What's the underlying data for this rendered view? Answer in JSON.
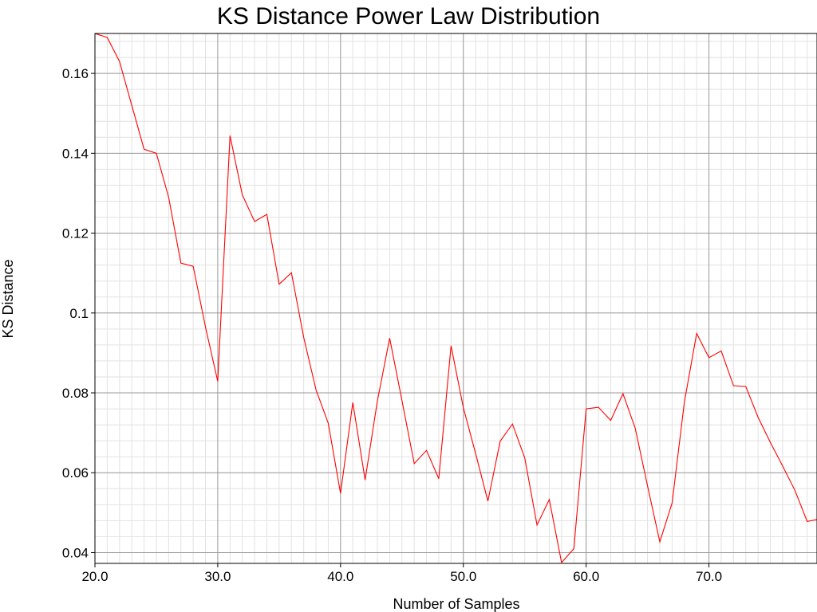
{
  "chart_data": {
    "type": "line",
    "title": "KS Distance Power Law Distribution",
    "xlabel": "Number of Samples",
    "ylabel": "KS Distance",
    "xlim": [
      20,
      78.8
    ],
    "ylim": [
      0.0373,
      0.17
    ],
    "grid": true,
    "x_ticks": [
      20,
      30,
      40,
      50,
      60,
      70
    ],
    "x_tick_labels": [
      "20.0",
      "30.0",
      "40.0",
      "50.0",
      "60.0",
      "70.0"
    ],
    "y_ticks": [
      0.04,
      0.06,
      0.08,
      0.1,
      0.12,
      0.14,
      0.16
    ],
    "y_tick_labels": [
      "0.04",
      "0.06",
      "0.08",
      "0.1",
      "0.12",
      "0.14",
      "0.16"
    ],
    "series": [
      {
        "color": "#ff0000",
        "x": [
          20,
          21,
          22,
          23,
          24,
          25,
          26,
          27,
          28,
          29,
          30,
          31,
          32,
          33,
          34,
          35,
          36,
          37,
          38,
          39,
          40,
          41,
          42,
          43,
          44,
          45,
          46,
          47,
          48,
          49,
          50,
          51,
          52,
          53,
          54,
          55,
          56,
          57,
          58,
          59,
          60,
          61,
          62,
          63,
          64,
          65,
          66,
          67,
          68,
          69,
          70,
          71,
          72,
          73,
          74,
          75,
          76,
          77,
          78,
          79
        ],
        "values": [
          0.17,
          0.169,
          0.163,
          0.152,
          0.141,
          0.14,
          0.129,
          0.1125,
          0.1117,
          0.0965,
          0.0829,
          0.1444,
          0.1296,
          0.1229,
          0.1247,
          0.1072,
          0.1101,
          0.0939,
          0.0808,
          0.0724,
          0.0548,
          0.0776,
          0.0582,
          0.078,
          0.0937,
          0.0781,
          0.0623,
          0.0656,
          0.0585,
          0.0918,
          0.0763,
          0.0648,
          0.0529,
          0.0679,
          0.0722,
          0.0637,
          0.0469,
          0.0533,
          0.0375,
          0.041,
          0.076,
          0.0764,
          0.0731,
          0.0798,
          0.0711,
          0.0567,
          0.0427,
          0.0524,
          0.0777,
          0.0949,
          0.0888,
          0.0905,
          0.0818,
          0.0816,
          0.0739,
          0.0676,
          0.0617,
          0.0556,
          0.0478,
          0.0484
        ]
      }
    ]
  }
}
